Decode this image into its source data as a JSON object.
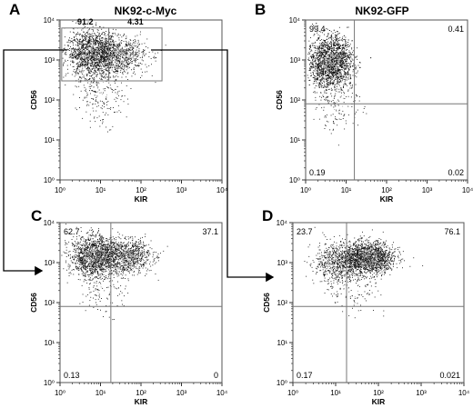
{
  "chart_data": [
    {
      "type": "scatter",
      "panel": "A",
      "title": "NK92-c-Myc",
      "xlabel": "KIR",
      "ylabel": "CD56",
      "scale": "log",
      "xlim": [
        1,
        10000
      ],
      "ylim": [
        1,
        10000
      ],
      "x_ticks": [
        "10⁰",
        "10¹",
        "10²",
        "10³",
        "10⁴"
      ],
      "y_ticks": [
        "10⁰",
        "10¹",
        "10²",
        "10³",
        "10⁴"
      ],
      "gate_labels": [
        "91.2",
        "4.31"
      ],
      "clusters": [
        {
          "center_x": 6,
          "center_y": 1500,
          "spread_x": 0.32,
          "spread_y": 0.28,
          "share": 0.62
        },
        {
          "center_x": 30,
          "center_y": 1300,
          "spread_x": 0.34,
          "spread_y": 0.22,
          "share": 0.28
        },
        {
          "center_x": 10,
          "center_y": 200,
          "spread_x": 0.3,
          "spread_y": 0.45,
          "share": 0.1
        }
      ],
      "gates": [
        {
          "x_range": [
            1.1,
            16
          ],
          "y_range": [
            300,
            6300
          ]
        },
        {
          "x_range": [
            16,
            330
          ],
          "y_range": [
            300,
            6300
          ]
        }
      ]
    },
    {
      "type": "scatter",
      "panel": "B",
      "title": "NK92-GFP",
      "xlabel": "KIR",
      "ylabel": "CD56",
      "scale": "log",
      "xlim": [
        1,
        10000
      ],
      "ylim": [
        1,
        10000
      ],
      "x_ticks": [
        "10⁰",
        "10¹",
        "10²",
        "10³",
        "10⁴"
      ],
      "y_ticks": [
        "10⁰",
        "10¹",
        "10²",
        "10³",
        "10⁴"
      ],
      "quadrant_split": {
        "x": 16,
        "y": 80
      },
      "quadrant_values": {
        "upper_left": "99.4",
        "upper_right": "0.41",
        "lower_left": "0.19",
        "lower_right": "0.02"
      },
      "clusters": [
        {
          "center_x": 4,
          "center_y": 900,
          "spread_x": 0.28,
          "spread_y": 0.32,
          "share": 0.94
        },
        {
          "center_x": 6,
          "center_y": 90,
          "spread_x": 0.3,
          "spread_y": 0.35,
          "share": 0.06
        }
      ]
    },
    {
      "type": "scatter",
      "panel": "C",
      "title": "",
      "xlabel": "KIR",
      "ylabel": "CD56",
      "scale": "log",
      "xlim": [
        1,
        10000
      ],
      "ylim": [
        1,
        10000
      ],
      "x_ticks": [
        "10⁰",
        "10¹",
        "10²",
        "10³",
        "10⁴"
      ],
      "y_ticks": [
        "10⁰",
        "10¹",
        "10²",
        "10³",
        "10⁴"
      ],
      "quadrant_split": {
        "x": 18,
        "y": 80
      },
      "quadrant_values": {
        "upper_left": "62.7",
        "upper_right": "37.1",
        "lower_left": "0.13",
        "lower_right": "0"
      },
      "clusters": [
        {
          "center_x": 7,
          "center_y": 1500,
          "spread_x": 0.3,
          "spread_y": 0.25,
          "share": 0.6
        },
        {
          "center_x": 45,
          "center_y": 1500,
          "spread_x": 0.3,
          "spread_y": 0.2,
          "share": 0.35
        },
        {
          "center_x": 12,
          "center_y": 250,
          "spread_x": 0.3,
          "spread_y": 0.35,
          "share": 0.05
        }
      ]
    },
    {
      "type": "scatter",
      "panel": "D",
      "title": "",
      "xlabel": "KIR",
      "ylabel": "CD56",
      "scale": "log",
      "xlim": [
        1,
        10000
      ],
      "ylim": [
        1,
        10000
      ],
      "x_ticks": [
        "10⁰",
        "10¹",
        "10²",
        "10³",
        "10⁴"
      ],
      "y_ticks": [
        "10⁰",
        "10¹",
        "10²",
        "10³",
        "10⁴"
      ],
      "quadrant_split": {
        "x": 18,
        "y": 80
      },
      "quadrant_values": {
        "upper_left": "23.7",
        "upper_right": "76.1",
        "lower_left": "0.17",
        "lower_right": "0.021"
      },
      "clusters": [
        {
          "center_x": 10,
          "center_y": 1000,
          "spread_x": 0.25,
          "spread_y": 0.25,
          "share": 0.25
        },
        {
          "center_x": 55,
          "center_y": 1300,
          "spread_x": 0.3,
          "spread_y": 0.2,
          "share": 0.7
        },
        {
          "center_x": 25,
          "center_y": 250,
          "spread_x": 0.3,
          "spread_y": 0.35,
          "share": 0.05
        }
      ]
    }
  ]
}
